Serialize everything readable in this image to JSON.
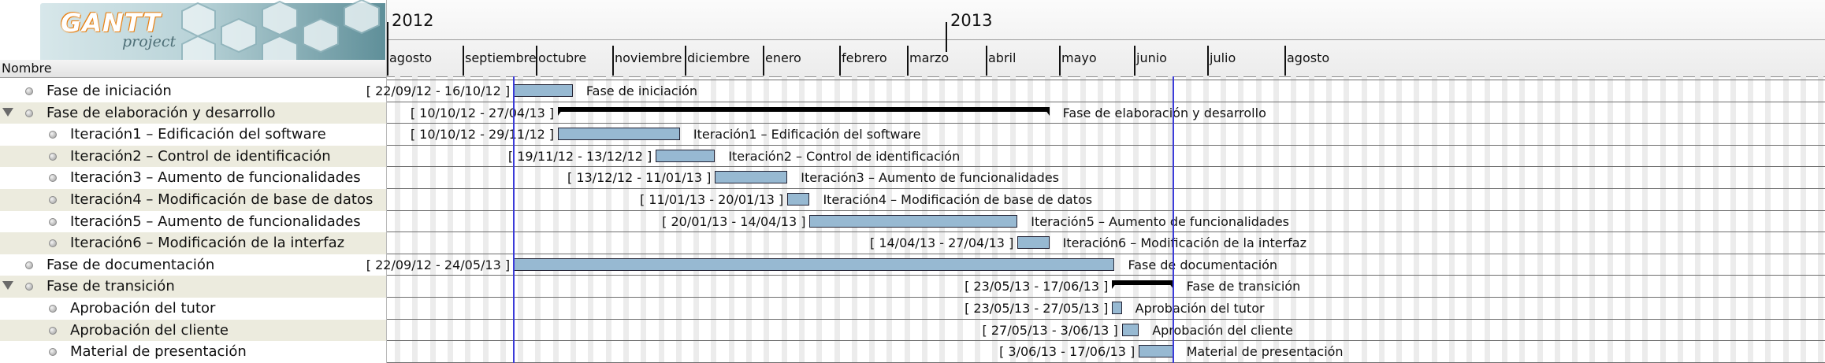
{
  "logo": {
    "word": "GANTT",
    "sub": "project"
  },
  "tree": {
    "header": "Nombre",
    "rows": [
      {
        "label": "Fase de iniciación",
        "expandable": false
      },
      {
        "label": "Fase de elaboración y desarrollo",
        "expandable": true
      },
      {
        "label": "Iteración1 – Edificación del software",
        "expandable": false
      },
      {
        "label": "Iteración2 – Control de identificación",
        "expandable": false
      },
      {
        "label": "Iteración3 – Aumento de funcionalidades",
        "expandable": false
      },
      {
        "label": "Iteración4 – Modificación de base de datos",
        "expandable": false
      },
      {
        "label": "Iteración5 – Aumento de funcionalidades",
        "expandable": false
      },
      {
        "label": "Iteración6 – Modificación de la interfaz",
        "expandable": false
      },
      {
        "label": "Fase de documentación",
        "expandable": false
      },
      {
        "label": "Fase de transición",
        "expandable": true
      },
      {
        "label": "Aprobación del tutor",
        "expandable": false
      },
      {
        "label": "Aprobación del cliente",
        "expandable": false
      },
      {
        "label": "Material de presentación",
        "expandable": false
      }
    ]
  },
  "timeline": {
    "years": [
      "2012",
      "2013"
    ],
    "months": [
      "agosto",
      "septiembre",
      "octubre",
      "noviembre",
      "diciembre",
      "enero",
      "febrero",
      "marzo",
      "abril",
      "mayo",
      "junio",
      "julio",
      "agosto"
    ]
  },
  "chart": {
    "tasks": [
      {
        "dates": "[ 22/09/12 - 16/10/12 ]",
        "name": "Fase de iniciación",
        "start": "2012-09-22",
        "end": "2012-10-16",
        "summary": false
      },
      {
        "dates": "[ 10/10/12 - 27/04/13 ]",
        "name": "Fase de elaboración y desarrollo",
        "start": "2012-10-10",
        "end": "2013-04-27",
        "summary": true
      },
      {
        "dates": "[ 10/10/12 - 29/11/12 ]",
        "name": "Iteración1 – Edificación del software",
        "start": "2012-10-10",
        "end": "2012-11-29",
        "summary": false
      },
      {
        "dates": "[ 19/11/12 - 13/12/12 ]",
        "name": "Iteración2 – Control de identificación",
        "start": "2012-11-19",
        "end": "2012-12-13",
        "summary": false
      },
      {
        "dates": "[ 13/12/12 - 11/01/13 ]",
        "name": "Iteración3 – Aumento de funcionalidades",
        "start": "2012-12-13",
        "end": "2013-01-11",
        "summary": false
      },
      {
        "dates": "[ 11/01/13 - 20/01/13 ]",
        "name": "Iteración4 – Modificación de base de datos",
        "start": "2013-01-11",
        "end": "2013-01-20",
        "summary": false
      },
      {
        "dates": "[ 20/01/13 - 14/04/13 ]",
        "name": "Iteración5 – Aumento de funcionalidades",
        "start": "2013-01-20",
        "end": "2013-04-14",
        "summary": false
      },
      {
        "dates": "[ 14/04/13 - 27/04/13 ]",
        "name": "Iteración6 – Modificación de la interfaz",
        "start": "2013-04-14",
        "end": "2013-04-27",
        "summary": false
      },
      {
        "dates": "[ 22/09/12 - 24/05/13 ]",
        "name": "Fase de documentación",
        "start": "2012-09-22",
        "end": "2013-05-24",
        "summary": false
      },
      {
        "dates": "[ 23/05/13 - 17/06/13 ]",
        "name": "Fase de transición",
        "start": "2013-05-23",
        "end": "2013-06-17",
        "summary": true
      },
      {
        "dates": "[ 23/05/13 - 27/05/13 ]",
        "name": "Aprobación del tutor",
        "start": "2013-05-23",
        "end": "2013-05-27",
        "summary": false
      },
      {
        "dates": "[ 27/05/13 - 3/06/13 ]",
        "name": "Aprobación del cliente",
        "start": "2013-05-27",
        "end": "2013-06-03",
        "summary": false
      },
      {
        "dates": "[ 3/06/13 - 17/06/13 ]",
        "name": "Material de presentación",
        "start": "2013-06-03",
        "end": "2013-06-17",
        "summary": false
      }
    ],
    "markers": [
      "2012-09-22",
      "2013-06-17"
    ],
    "colors": {
      "bar": "#97b9d2",
      "marker": "#3b3bd9",
      "alt_row": "#ecebde"
    }
  }
}
